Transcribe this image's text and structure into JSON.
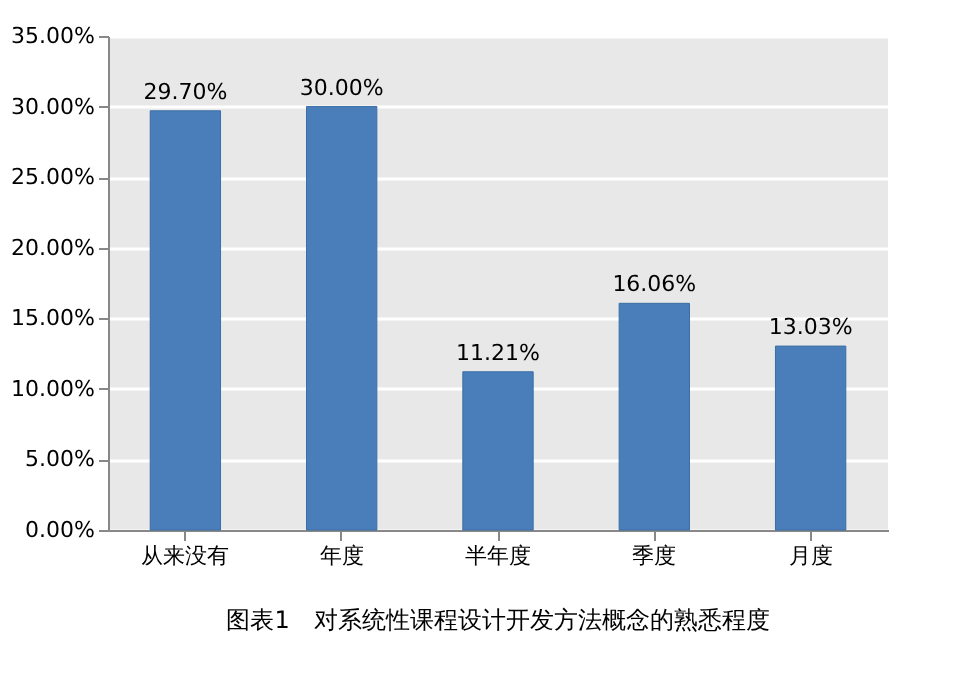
{
  "chart_data": {
    "type": "bar",
    "categories": [
      "从来没有",
      "年度",
      "半年度",
      "季度",
      "月度"
    ],
    "values": [
      29.7,
      30.0,
      11.21,
      16.06,
      13.03
    ],
    "value_labels": [
      "29.70%",
      "30.00%",
      "11.21%",
      "16.06%",
      "13.03%"
    ],
    "color": "#4a7ebb",
    "ylim": [
      0,
      35
    ],
    "yticks": [
      {
        "value": 0,
        "label": "0.00%"
      },
      {
        "value": 5,
        "label": "5.00%"
      },
      {
        "value": 10,
        "label": "10.00%"
      },
      {
        "value": 15,
        "label": "15.00%"
      },
      {
        "value": 20,
        "label": "20.00%"
      },
      {
        "value": 25,
        "label": "25.00%"
      },
      {
        "value": 30,
        "label": "30.00%"
      },
      {
        "value": 35,
        "label": "35.00%"
      }
    ],
    "grid": "y",
    "annotations": [
      "图表1　对系统性课程设计开发方法概念的熟悉程度"
    ]
  }
}
